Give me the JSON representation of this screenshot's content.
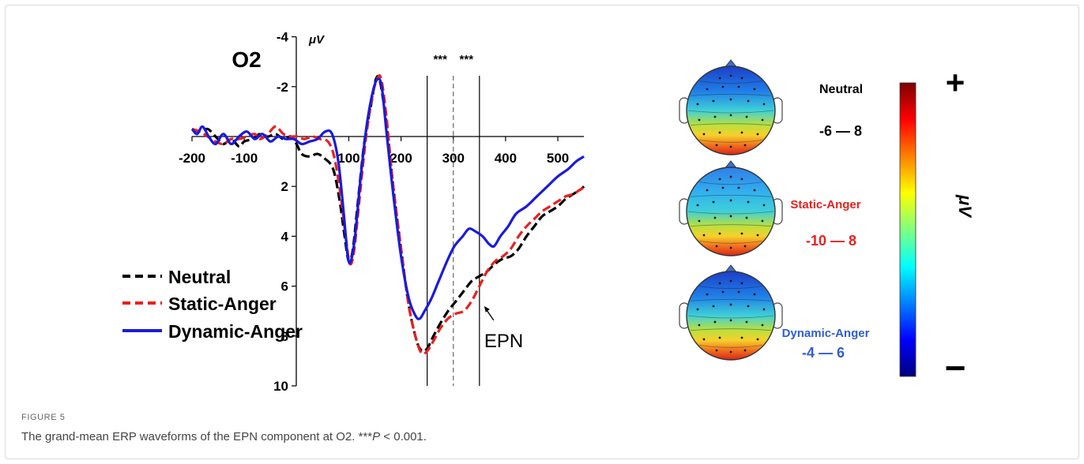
{
  "figure": {
    "label": "FIGURE 5",
    "caption_main": "The grand-mean ERP waveforms of the EPN component at O2. ***",
    "caption_p": "P",
    "caption_tail": " < 0.001."
  },
  "chart_data": {
    "type": "line",
    "title": "O2",
    "ylabel": "μV",
    "xlim": [
      -200,
      550
    ],
    "ylim": [
      10,
      -4
    ],
    "y_inverted": true,
    "x_ticks": [
      "-200",
      "-100",
      "100",
      "200",
      "300",
      "400",
      "500"
    ],
    "x_tick_values": [
      -200,
      -100,
      100,
      200,
      300,
      400,
      500
    ],
    "y_ticks": [
      "-4",
      "-2",
      "2",
      "4",
      "6",
      "8",
      "10"
    ],
    "y_tick_values": [
      -4,
      -2,
      2,
      4,
      6,
      8,
      10
    ],
    "vlines": [
      {
        "x": 250,
        "style": "solid"
      },
      {
        "x": 300,
        "style": "dashed"
      },
      {
        "x": 350,
        "style": "solid"
      }
    ],
    "significance": [
      "***",
      "***"
    ],
    "annotation": "EPN",
    "series": [
      {
        "name": "Neutral",
        "color": "#000000",
        "dash": "dash",
        "points": [
          [
            -200,
            -0.3
          ],
          [
            -185,
            -0.2
          ],
          [
            -170,
            -0.3
          ],
          [
            -155,
            0.0
          ],
          [
            -140,
            0.3
          ],
          [
            -125,
            0.1
          ],
          [
            -110,
            0.4
          ],
          [
            -100,
            0.2
          ],
          [
            -85,
            0.1
          ],
          [
            -70,
            -0.1
          ],
          [
            -55,
            0.0
          ],
          [
            -40,
            -0.1
          ],
          [
            -25,
            0.1
          ],
          [
            -10,
            0.0
          ],
          [
            0,
            0.3
          ],
          [
            10,
            0.7
          ],
          [
            25,
            0.8
          ],
          [
            40,
            0.7
          ],
          [
            55,
            0.9
          ],
          [
            70,
            1.3
          ],
          [
            82,
            2.5
          ],
          [
            92,
            4.0
          ],
          [
            100,
            5.0
          ],
          [
            108,
            4.5
          ],
          [
            118,
            2.5
          ],
          [
            130,
            0.2
          ],
          [
            142,
            -1.2
          ],
          [
            152,
            -2.3
          ],
          [
            160,
            -2.2
          ],
          [
            172,
            -0.5
          ],
          [
            185,
            2.0
          ],
          [
            200,
            4.5
          ],
          [
            215,
            6.8
          ],
          [
            230,
            8.2
          ],
          [
            240,
            8.6
          ],
          [
            250,
            8.5
          ],
          [
            262,
            8.0
          ],
          [
            275,
            7.5
          ],
          [
            290,
            7.0
          ],
          [
            305,
            6.6
          ],
          [
            320,
            6.2
          ],
          [
            335,
            5.8
          ],
          [
            350,
            5.6
          ],
          [
            365,
            5.4
          ],
          [
            380,
            5.1
          ],
          [
            395,
            4.9
          ],
          [
            410,
            4.8
          ],
          [
            425,
            4.5
          ],
          [
            440,
            4.0
          ],
          [
            455,
            3.6
          ],
          [
            470,
            3.2
          ],
          [
            485,
            3.0
          ],
          [
            500,
            2.8
          ],
          [
            515,
            2.5
          ],
          [
            530,
            2.3
          ],
          [
            545,
            2.1
          ],
          [
            550,
            2.0
          ]
        ]
      },
      {
        "name": "Static-Anger",
        "color": "#e8211e",
        "dash": "dash",
        "points": [
          [
            -200,
            -0.3
          ],
          [
            -185,
            -0.2
          ],
          [
            -170,
            0.0
          ],
          [
            -155,
            0.2
          ],
          [
            -140,
            0.3
          ],
          [
            -125,
            0.1
          ],
          [
            -110,
            0.1
          ],
          [
            -95,
            0.0
          ],
          [
            -80,
            -0.1
          ],
          [
            -70,
            0.1
          ],
          [
            -55,
            -0.1
          ],
          [
            -40,
            -0.4
          ],
          [
            -25,
            -0.1
          ],
          [
            -10,
            0.0
          ],
          [
            0,
            0.0
          ],
          [
            15,
            0.1
          ],
          [
            30,
            0.0
          ],
          [
            45,
            0.1
          ],
          [
            60,
            0.2
          ],
          [
            72,
            0.8
          ],
          [
            84,
            2.3
          ],
          [
            94,
            4.0
          ],
          [
            102,
            5.1
          ],
          [
            110,
            4.6
          ],
          [
            120,
            2.6
          ],
          [
            132,
            0.2
          ],
          [
            144,
            -1.5
          ],
          [
            154,
            -2.3
          ],
          [
            162,
            -2.3
          ],
          [
            172,
            -0.8
          ],
          [
            185,
            2.0
          ],
          [
            200,
            4.5
          ],
          [
            215,
            6.8
          ],
          [
            230,
            8.2
          ],
          [
            240,
            8.7
          ],
          [
            250,
            8.6
          ],
          [
            262,
            8.2
          ],
          [
            275,
            7.7
          ],
          [
            290,
            7.3
          ],
          [
            305,
            7.1
          ],
          [
            320,
            7.0
          ],
          [
            335,
            6.6
          ],
          [
            350,
            6.0
          ],
          [
            365,
            5.4
          ],
          [
            380,
            5.0
          ],
          [
            395,
            4.8
          ],
          [
            410,
            4.5
          ],
          [
            425,
            4.0
          ],
          [
            440,
            3.6
          ],
          [
            455,
            3.3
          ],
          [
            470,
            3.0
          ],
          [
            485,
            2.8
          ],
          [
            500,
            2.6
          ],
          [
            515,
            2.4
          ],
          [
            530,
            2.3
          ],
          [
            545,
            2.1
          ],
          [
            550,
            2.1
          ]
        ]
      },
      {
        "name": "Dynamic-Anger",
        "color": "#1a1adf",
        "dash": "solid",
        "points": [
          [
            -200,
            -0.3
          ],
          [
            -190,
            -0.1
          ],
          [
            -180,
            -0.4
          ],
          [
            -168,
            0.0
          ],
          [
            -155,
            0.3
          ],
          [
            -140,
            -0.1
          ],
          [
            -125,
            0.3
          ],
          [
            -110,
            0.0
          ],
          [
            -95,
            -0.2
          ],
          [
            -80,
            0.1
          ],
          [
            -65,
            -0.1
          ],
          [
            -50,
            0.2
          ],
          [
            -35,
            0.0
          ],
          [
            -20,
            0.1
          ],
          [
            -5,
            0.1
          ],
          [
            10,
            0.3
          ],
          [
            25,
            0.2
          ],
          [
            40,
            0.1
          ],
          [
            55,
            -0.2
          ],
          [
            68,
            -0.1
          ],
          [
            80,
            1.0
          ],
          [
            90,
            3.0
          ],
          [
            98,
            4.8
          ],
          [
            104,
            5.0
          ],
          [
            112,
            4.0
          ],
          [
            122,
            1.8
          ],
          [
            134,
            -0.4
          ],
          [
            146,
            -1.8
          ],
          [
            155,
            -2.3
          ],
          [
            163,
            -2.0
          ],
          [
            172,
            -0.2
          ],
          [
            185,
            2.3
          ],
          [
            200,
            4.8
          ],
          [
            215,
            6.5
          ],
          [
            228,
            7.2
          ],
          [
            236,
            7.3
          ],
          [
            245,
            7.0
          ],
          [
            258,
            6.5
          ],
          [
            272,
            5.8
          ],
          [
            288,
            5.0
          ],
          [
            302,
            4.4
          ],
          [
            318,
            4.0
          ],
          [
            330,
            3.7
          ],
          [
            342,
            3.8
          ],
          [
            356,
            4.0
          ],
          [
            368,
            4.3
          ],
          [
            378,
            4.4
          ],
          [
            390,
            4.0
          ],
          [
            405,
            3.6
          ],
          [
            420,
            3.1
          ],
          [
            440,
            2.8
          ],
          [
            460,
            2.4
          ],
          [
            480,
            2.0
          ],
          [
            500,
            1.6
          ],
          [
            520,
            1.3
          ],
          [
            535,
            1.0
          ],
          [
            550,
            0.8
          ]
        ]
      }
    ],
    "topomaps": [
      {
        "label": "Neutral",
        "range": "-6 — 8",
        "color": "#000000",
        "blue_strength": 0.7
      },
      {
        "label": "Static-Anger",
        "range": "-10 — 8",
        "color": "#e8211e",
        "blue_strength": 0.35
      },
      {
        "label": "Dynamic-Anger",
        "range": "-4 — 6",
        "color": "#2f5fd0",
        "blue_strength": 1.0
      }
    ],
    "colorbar": {
      "label": "μV",
      "top_symbol": "+",
      "bottom_symbol": "−",
      "colors": [
        "#7f0000",
        "#ff0000",
        "#ff8000",
        "#ffff00",
        "#80ff80",
        "#00ffff",
        "#0080ff",
        "#0000ff",
        "#00007f"
      ]
    }
  }
}
